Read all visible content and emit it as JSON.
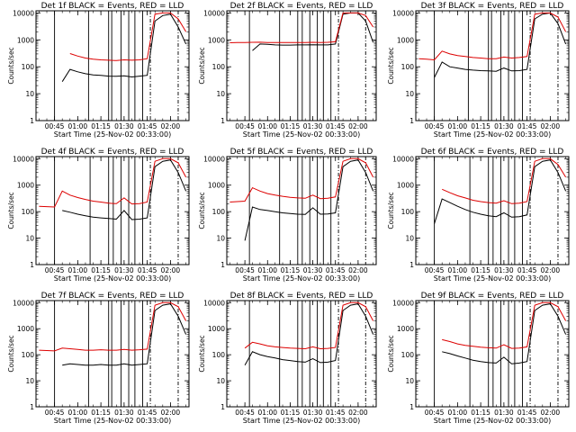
{
  "figure": {
    "x_label": "Start Time (25-Nov-02 00:33:00)",
    "y_label": "Counts/sec",
    "colors": {
      "events": "#000000",
      "lld": "#dd0000"
    }
  },
  "chart_data": [
    {
      "type": "line",
      "title": "Det 1f BLACK = Events, RED = LLD",
      "xlabel": "Start Time (25-Nov-02 00:33:00)",
      "ylabel": "Counts/sec",
      "x_ticks": [
        "00:45",
        "01:00",
        "01:15",
        "01:30",
        "01:45",
        "02:00"
      ],
      "y_ticks": [
        "1",
        "10",
        "100",
        "1000",
        "10000"
      ],
      "y_scale": "log",
      "ylim": [
        1,
        12000
      ],
      "x": [
        "00:35",
        "00:40",
        "00:45",
        "00:50",
        "00:55",
        "01:00",
        "01:05",
        "01:10",
        "01:15",
        "01:20",
        "01:25",
        "01:30",
        "01:35",
        "01:40",
        "01:45",
        "01:50",
        "01:55",
        "02:00",
        "02:05",
        "02:10"
      ],
      "series": [
        {
          "name": "Events",
          "values": [
            null,
            null,
            null,
            28,
            80,
            65,
            55,
            50,
            48,
            45,
            44,
            46,
            42,
            45,
            48,
            5000,
            8000,
            9000,
            3000,
            700
          ]
        },
        {
          "name": "LLD",
          "values": [
            null,
            null,
            null,
            null,
            310,
            250,
            210,
            190,
            180,
            175,
            170,
            180,
            175,
            180,
            200,
            9000,
            10000,
            10000,
            6000,
            2000
          ]
        }
      ],
      "vertical_lines": {
        "solid": [
          "00:45",
          "01:07",
          "01:20",
          "01:22",
          "01:28",
          "01:33",
          "01:37",
          "01:42"
        ],
        "dashed": [
          "01:47",
          "02:05"
        ]
      }
    },
    {
      "type": "line",
      "title": "Det 2f BLACK = Events, RED = LLD",
      "xlabel": "Start Time (25-Nov-02 00:33:00)",
      "ylabel": "Counts/sec",
      "x_ticks": [
        "00:45",
        "01:00",
        "01:15",
        "01:30",
        "01:45",
        "02:00"
      ],
      "y_ticks": [
        "1",
        "10",
        "100",
        "1000",
        "10000"
      ],
      "y_scale": "log",
      "ylim": [
        1,
        12000
      ],
      "x": [
        "00:35",
        "00:40",
        "00:45",
        "00:50",
        "00:55",
        "01:00",
        "01:05",
        "01:10",
        "01:15",
        "01:20",
        "01:25",
        "01:30",
        "01:35",
        "01:40",
        "01:45",
        "01:50",
        "01:55",
        "02:00",
        "02:05",
        "02:10"
      ],
      "series": [
        {
          "name": "Events",
          "values": [
            null,
            null,
            null,
            400,
            700,
            680,
            650,
            640,
            640,
            650,
            650,
            660,
            650,
            650,
            700,
            9000,
            10000,
            10000,
            5000,
            800
          ]
        },
        {
          "name": "LLD",
          "values": [
            780,
            790,
            800,
            810,
            820,
            800,
            790,
            790,
            790,
            800,
            800,
            810,
            800,
            810,
            850,
            10000,
            10000,
            10000,
            8000,
            3000
          ]
        }
      ],
      "vertical_lines": {
        "solid": [
          "00:48",
          "01:08",
          "01:20",
          "01:23",
          "01:28",
          "01:33",
          "01:37",
          "01:42"
        ],
        "dashed": [
          "01:47",
          "02:05"
        ]
      }
    },
    {
      "type": "line",
      "title": "Det 3f BLACK = Events, RED = LLD",
      "xlabel": "Start Time (25-Nov-02 00:33:00)",
      "ylabel": "Counts/sec",
      "x_ticks": [
        "00:45",
        "01:00",
        "01:15",
        "01:30",
        "01:45",
        "02:00"
      ],
      "y_ticks": [
        "1",
        "10",
        "100",
        "1000",
        "10000"
      ],
      "y_scale": "log",
      "ylim": [
        1,
        12000
      ],
      "x": [
        "00:35",
        "00:40",
        "00:45",
        "00:50",
        "00:55",
        "01:00",
        "01:05",
        "01:10",
        "01:15",
        "01:20",
        "01:25",
        "01:30",
        "01:35",
        "01:40",
        "01:45",
        "01:50",
        "01:55",
        "02:00",
        "02:05",
        "02:10"
      ],
      "series": [
        {
          "name": "Events",
          "values": [
            null,
            null,
            40,
            150,
            100,
            90,
            80,
            75,
            72,
            70,
            68,
            90,
            70,
            72,
            80,
            6000,
            9000,
            10000,
            4000,
            700
          ]
        },
        {
          "name": "LLD",
          "values": [
            200,
            190,
            180,
            380,
            300,
            260,
            240,
            220,
            210,
            200,
            200,
            230,
            210,
            220,
            240,
            9000,
            10000,
            10000,
            7000,
            2000
          ]
        }
      ],
      "vertical_lines": {
        "solid": [
          "00:45",
          "01:07",
          "01:20",
          "01:22",
          "01:28",
          "01:33",
          "01:37",
          "01:42"
        ],
        "dashed": [
          "01:47",
          "02:05"
        ]
      }
    },
    {
      "type": "line",
      "title": "Det 4f BLACK = Events, RED = LLD",
      "xlabel": "Start Time (25-Nov-02 00:33:00)",
      "ylabel": "Counts/sec",
      "x_ticks": [
        "00:45",
        "01:00",
        "01:15",
        "01:30",
        "01:45",
        "02:00"
      ],
      "y_ticks": [
        "1",
        "10",
        "100",
        "1000",
        "10000"
      ],
      "y_scale": "log",
      "ylim": [
        1,
        12000
      ],
      "x": [
        "00:35",
        "00:40",
        "00:45",
        "00:50",
        "00:55",
        "01:00",
        "01:05",
        "01:10",
        "01:15",
        "01:20",
        "01:25",
        "01:30",
        "01:35",
        "01:40",
        "01:45",
        "01:50",
        "01:55",
        "02:00",
        "02:05",
        "02:10"
      ],
      "series": [
        {
          "name": "Events",
          "values": [
            null,
            null,
            null,
            110,
            95,
            80,
            70,
            62,
            58,
            55,
            52,
            110,
            50,
            52,
            58,
            5000,
            8000,
            9000,
            3000,
            600
          ]
        },
        {
          "name": "LLD",
          "values": [
            160,
            155,
            150,
            600,
            420,
            340,
            290,
            250,
            230,
            210,
            200,
            330,
            195,
            200,
            230,
            8000,
            10000,
            10000,
            7000,
            2000
          ]
        }
      ],
      "vertical_lines": {
        "solid": [
          "00:45",
          "01:08",
          "01:20",
          "01:23",
          "01:28",
          "01:33",
          "01:37",
          "01:42"
        ],
        "dashed": [
          "01:47",
          "02:05"
        ]
      }
    },
    {
      "type": "line",
      "title": "Det 5f BLACK = Events, RED = LLD",
      "xlabel": "Start Time (25-Nov-02 00:33:00)",
      "ylabel": "Counts/sec",
      "x_ticks": [
        "00:45",
        "01:00",
        "01:15",
        "01:30",
        "01:45",
        "02:00"
      ],
      "y_ticks": [
        "1",
        "10",
        "100",
        "1000",
        "10000"
      ],
      "y_scale": "log",
      "ylim": [
        1,
        12000
      ],
      "x": [
        "00:35",
        "00:40",
        "00:45",
        "00:50",
        "00:55",
        "01:00",
        "01:05",
        "01:10",
        "01:15",
        "01:20",
        "01:25",
        "01:30",
        "01:35",
        "01:40",
        "01:45",
        "01:50",
        "01:55",
        "02:00",
        "02:05",
        "02:10"
      ],
      "series": [
        {
          "name": "Events",
          "values": [
            null,
            null,
            8,
            150,
            120,
            110,
            100,
            90,
            85,
            80,
            78,
            140,
            80,
            82,
            90,
            5000,
            8000,
            9000,
            3000,
            600
          ]
        },
        {
          "name": "LLD",
          "values": [
            230,
            240,
            250,
            800,
            600,
            480,
            420,
            380,
            350,
            330,
            320,
            420,
            310,
            320,
            360,
            8000,
            10000,
            10000,
            7000,
            2000
          ]
        }
      ],
      "vertical_lines": {
        "solid": [
          "00:48",
          "01:08",
          "01:20",
          "01:23",
          "01:28",
          "01:33",
          "01:37",
          "01:42"
        ],
        "dashed": [
          "01:47",
          "02:05"
        ]
      }
    },
    {
      "type": "line",
      "title": "Det 6f BLACK = Events, RED = LLD",
      "xlabel": "Start Time (25-Nov-02 00:33:00)",
      "ylabel": "Counts/sec",
      "x_ticks": [
        "00:45",
        "01:00",
        "01:15",
        "01:30",
        "01:45",
        "02:00"
      ],
      "y_ticks": [
        "1",
        "10",
        "100",
        "1000",
        "10000"
      ],
      "y_scale": "log",
      "ylim": [
        1,
        12000
      ],
      "x": [
        "00:35",
        "00:40",
        "00:45",
        "00:50",
        "00:55",
        "01:00",
        "01:05",
        "01:10",
        "01:15",
        "01:20",
        "01:25",
        "01:30",
        "01:35",
        "01:40",
        "01:45",
        "01:50",
        "01:55",
        "02:00",
        "02:05",
        "02:10"
      ],
      "series": [
        {
          "name": "Events",
          "values": [
            null,
            null,
            35,
            300,
            220,
            160,
            120,
            95,
            80,
            70,
            65,
            90,
            62,
            65,
            75,
            5000,
            8000,
            9000,
            3000,
            600
          ]
        },
        {
          "name": "LLD",
          "values": [
            null,
            null,
            null,
            700,
            520,
            400,
            330,
            270,
            240,
            220,
            210,
            260,
            200,
            210,
            240,
            8000,
            10000,
            10000,
            6000,
            2000
          ]
        }
      ],
      "vertical_lines": {
        "solid": [
          "00:45",
          "01:08",
          "01:20",
          "01:23",
          "01:28",
          "01:33",
          "01:37",
          "01:42"
        ],
        "dashed": [
          "01:47",
          "02:05"
        ]
      }
    },
    {
      "type": "line",
      "title": "Det 7f BLACK = Events, RED = LLD",
      "xlabel": "Start Time (25-Nov-02 00:33:00)",
      "ylabel": "Counts/sec",
      "x_ticks": [
        "00:45",
        "01:00",
        "01:15",
        "01:30",
        "01:45",
        "02:00"
      ],
      "y_ticks": [
        "1",
        "10",
        "100",
        "1000",
        "10000"
      ],
      "y_scale": "log",
      "ylim": [
        1,
        12000
      ],
      "x": [
        "00:35",
        "00:40",
        "00:45",
        "00:50",
        "00:55",
        "01:00",
        "01:05",
        "01:10",
        "01:15",
        "01:20",
        "01:25",
        "01:30",
        "01:35",
        "01:40",
        "01:45",
        "01:50",
        "01:55",
        "02:00",
        "02:05",
        "02:10"
      ],
      "series": [
        {
          "name": "Events",
          "values": [
            null,
            null,
            null,
            40,
            45,
            42,
            40,
            40,
            42,
            40,
            40,
            45,
            40,
            42,
            45,
            5000,
            8000,
            9000,
            3000,
            600
          ]
        },
        {
          "name": "LLD",
          "values": [
            150,
            145,
            140,
            180,
            170,
            160,
            150,
            150,
            155,
            150,
            150,
            160,
            150,
            155,
            165,
            8000,
            10000,
            10000,
            7000,
            2000
          ]
        }
      ],
      "vertical_lines": {
        "solid": [
          "00:45",
          "01:07",
          "01:20",
          "01:22",
          "01:28",
          "01:33",
          "01:37",
          "01:42"
        ],
        "dashed": [
          "01:47",
          "02:05"
        ]
      }
    },
    {
      "type": "line",
      "title": "Det 8f BLACK = Events, RED = LLD",
      "xlabel": "Start Time (25-Nov-02 00:33:00)",
      "ylabel": "Counts/sec",
      "x_ticks": [
        "00:45",
        "01:00",
        "01:15",
        "01:30",
        "01:45",
        "02:00"
      ],
      "y_ticks": [
        "1",
        "10",
        "100",
        "1000",
        "10000"
      ],
      "y_scale": "log",
      "ylim": [
        1,
        12000
      ],
      "x": [
        "00:35",
        "00:40",
        "00:45",
        "00:50",
        "00:55",
        "01:00",
        "01:05",
        "01:10",
        "01:15",
        "01:20",
        "01:25",
        "01:30",
        "01:35",
        "01:40",
        "01:45",
        "01:50",
        "01:55",
        "02:00",
        "02:05",
        "02:10"
      ],
      "series": [
        {
          "name": "Events",
          "values": [
            null,
            null,
            40,
            130,
            100,
            85,
            75,
            65,
            60,
            55,
            52,
            70,
            50,
            52,
            60,
            5000,
            8000,
            9000,
            3000,
            600
          ]
        },
        {
          "name": "LLD",
          "values": [
            null,
            null,
            180,
            300,
            260,
            220,
            200,
            190,
            180,
            175,
            170,
            200,
            170,
            175,
            190,
            8000,
            10000,
            10000,
            7000,
            2000
          ]
        }
      ],
      "vertical_lines": {
        "solid": [
          "00:48",
          "01:08",
          "01:20",
          "01:23",
          "01:28",
          "01:33",
          "01:37",
          "01:42"
        ],
        "dashed": [
          "01:47",
          "02:05"
        ]
      }
    },
    {
      "type": "line",
      "title": "Det 9f BLACK = Events, RED = LLD",
      "xlabel": "Start Time (25-Nov-02 00:33:00)",
      "ylabel": "Counts/sec",
      "x_ticks": [
        "00:45",
        "01:00",
        "01:15",
        "01:30",
        "01:45",
        "02:00"
      ],
      "y_ticks": [
        "1",
        "10",
        "100",
        "1000",
        "10000"
      ],
      "y_scale": "log",
      "ylim": [
        1,
        12000
      ],
      "x": [
        "00:35",
        "00:40",
        "00:45",
        "00:50",
        "00:55",
        "01:00",
        "01:05",
        "01:10",
        "01:15",
        "01:20",
        "01:25",
        "01:30",
        "01:35",
        "01:40",
        "01:45",
        "01:50",
        "01:55",
        "02:00",
        "02:05",
        "02:10"
      ],
      "series": [
        {
          "name": "Events",
          "values": [
            null,
            null,
            null,
            130,
            110,
            90,
            75,
            62,
            55,
            50,
            48,
            80,
            45,
            48,
            55,
            5000,
            8000,
            9000,
            3000,
            600
          ]
        },
        {
          "name": "LLD",
          "values": [
            null,
            null,
            null,
            380,
            320,
            260,
            230,
            210,
            195,
            185,
            180,
            240,
            175,
            180,
            200,
            8000,
            10000,
            10000,
            7000,
            2000
          ]
        }
      ],
      "vertical_lines": {
        "solid": [
          "00:45",
          "01:08",
          "01:20",
          "01:23",
          "01:28",
          "01:33",
          "01:37",
          "01:42"
        ],
        "dashed": [
          "01:47",
          "02:05"
        ]
      }
    }
  ]
}
